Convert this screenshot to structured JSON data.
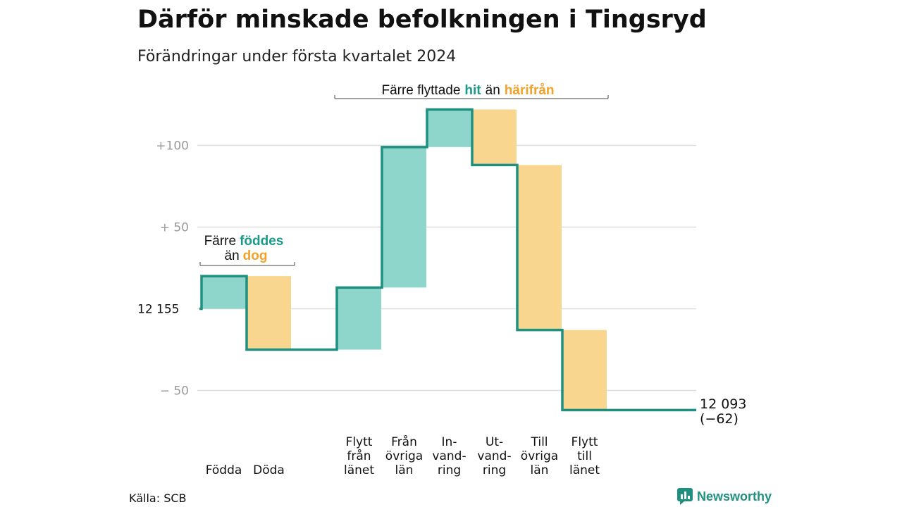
{
  "title": "Därför minskade befolkningen i Tingsryd",
  "subtitle": "Förändringar under första kvartalet 2024",
  "source": "Källa: SCB",
  "brand": {
    "name": "Newsworthy",
    "icon": "bar-chart-logo-icon"
  },
  "colors": {
    "increase": "#8ed6cc",
    "decrease": "#f9d68f",
    "step_line": "#1f8f80",
    "teal_text": "#1a9a8a",
    "orange_text": "#f2a22c",
    "grid": "#dedede",
    "tick_text": "#999999"
  },
  "annotations": {
    "births": {
      "line1_prefix": "Färre",
      "line1_teal": "föddes",
      "line2_prefix": "än",
      "line2_orange": "dog"
    },
    "migration": {
      "prefix": "Färre flyttade",
      "teal": "hit",
      "mid": "än",
      "orange": "härifrån"
    }
  },
  "chart_data": {
    "type": "waterfall",
    "title": "Därför minskade befolkningen i Tingsryd",
    "subtitle": "Förändringar under första kvartalet 2024",
    "start_value": 12155,
    "end_value": 12093,
    "end_label": "12 093",
    "end_change_label": "(−62)",
    "ylim": [
      -66,
      122
    ],
    "y_ticks": [
      {
        "value": 100,
        "label": "+100",
        "baseline": false
      },
      {
        "value": 50,
        "label": "+  50",
        "baseline": false
      },
      {
        "value": 0,
        "label": "12  155",
        "baseline": true
      },
      {
        "value": -50,
        "label": "−  50",
        "baseline": false
      }
    ],
    "steps": [
      {
        "key": "fodda",
        "label": [
          "Födda"
        ],
        "change": 20
      },
      {
        "key": "doda",
        "label": [
          "Döda"
        ],
        "change": -45
      },
      {
        "key": "gap1",
        "label": [],
        "change": 0
      },
      {
        "key": "flytt_fran_lanet",
        "label": [
          "Flytt",
          "från",
          "länet"
        ],
        "change": 38
      },
      {
        "key": "fran_ovriga_lan",
        "label": [
          "Från",
          "övriga",
          "län"
        ],
        "change": 86
      },
      {
        "key": "invandring",
        "label": [
          "In-",
          "vand-",
          "ring"
        ],
        "change": 23
      },
      {
        "key": "utvandring",
        "label": [
          "Ut-",
          "vand-",
          "ring"
        ],
        "change": -34
      },
      {
        "key": "till_ovriga_lan",
        "label": [
          "Till",
          "övriga",
          "län"
        ],
        "change": -101
      },
      {
        "key": "flytt_till_lanet",
        "label": [
          "Flytt",
          "till",
          "länet"
        ],
        "change": -49
      }
    ],
    "grid": true,
    "legend": "none"
  }
}
